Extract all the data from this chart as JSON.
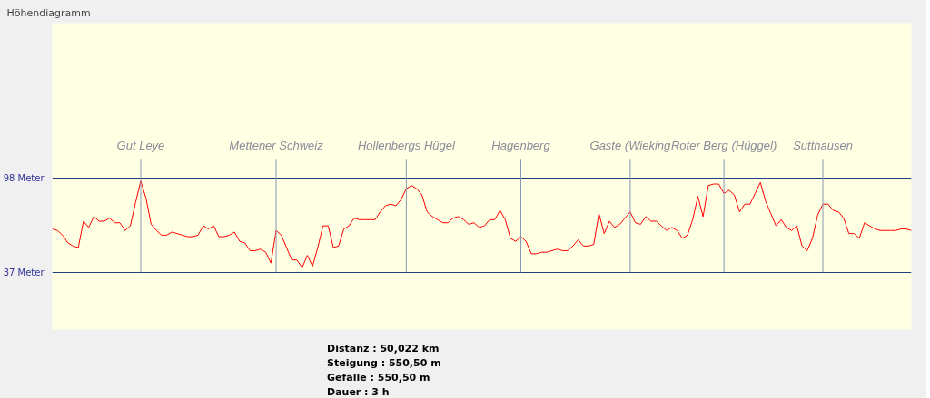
{
  "chart_data": {
    "type": "line",
    "title": "Höhendiagramm",
    "categories": [
      null,
      null,
      null,
      null,
      null,
      null,
      null,
      null,
      null,
      null,
      null,
      null,
      null,
      null,
      null,
      null,
      null,
      "Gut Leye",
      null,
      null,
      null,
      null,
      null,
      null,
      null,
      null,
      null,
      null,
      null,
      null,
      null,
      null,
      null,
      null,
      null,
      null,
      null,
      null,
      null,
      null,
      null,
      null,
      null,
      "Mettener Schweiz",
      null,
      null,
      null,
      null,
      null,
      null,
      null,
      null,
      null,
      null,
      null,
      null,
      null,
      null,
      null,
      null,
      null,
      null,
      null,
      null,
      null,
      null,
      null,
      null,
      "Hollenbergs Hügel",
      null,
      null,
      null,
      null,
      null,
      null,
      null,
      null,
      null,
      null,
      null,
      null,
      null,
      null,
      null,
      null,
      null,
      null,
      null,
      null,
      null,
      "Hagenberg",
      null,
      null,
      null,
      null,
      null,
      null,
      null,
      null,
      null,
      null,
      null,
      null,
      null,
      null,
      null,
      null,
      null,
      null,
      null,
      null,
      "Gaste (Wieking",
      null,
      null,
      null,
      null,
      null,
      null,
      null,
      null,
      null,
      null,
      null,
      null,
      null,
      null,
      null,
      null,
      null,
      "Roter Berg (Hüggel)",
      null,
      null,
      null,
      null,
      null,
      null,
      null,
      null,
      null,
      null,
      null,
      null,
      null,
      null,
      null,
      null,
      null,
      null,
      "Sutthausen",
      null,
      null,
      null,
      null,
      null,
      null,
      null,
      null,
      null,
      null,
      null,
      null,
      null,
      null,
      null,
      null,
      null
    ],
    "series": [
      {
        "color": "#ff0000",
        "values": [
          65,
          64,
          61,
          56,
          54,
          53,
          70,
          66,
          73,
          70,
          70,
          72,
          69,
          69,
          64,
          67,
          82,
          96,
          85,
          68,
          64,
          61,
          61,
          63,
          62,
          61,
          60,
          60,
          61,
          67,
          65,
          67,
          60,
          60,
          61,
          63,
          57,
          56,
          51,
          51,
          52,
          50,
          43,
          64,
          61,
          53,
          45,
          45,
          40,
          48,
          41,
          53,
          67,
          67,
          53,
          54,
          65,
          67,
          72,
          71,
          71,
          71,
          71,
          76,
          80,
          81,
          80,
          84,
          91,
          93,
          91,
          87,
          76,
          73,
          71,
          69,
          69,
          72,
          73,
          71,
          68,
          69,
          66,
          67,
          71,
          71,
          77,
          71,
          59,
          57,
          60,
          57,
          49,
          49,
          50,
          50,
          51,
          52,
          51,
          51,
          54,
          58,
          54,
          54,
          55,
          75,
          62,
          70,
          66,
          68,
          72,
          76,
          69,
          68,
          73,
          70,
          70,
          67,
          64,
          66,
          64,
          59,
          61,
          71,
          86,
          73,
          93,
          94,
          94,
          88,
          90,
          87,
          76,
          81,
          81,
          88,
          95,
          83,
          75,
          67,
          71,
          66,
          64,
          67,
          54,
          51,
          59,
          74,
          81,
          81,
          77,
          76,
          72,
          62,
          62,
          59,
          69,
          67,
          65,
          64,
          64,
          64,
          64,
          65,
          65,
          64
        ]
      }
    ],
    "ylim": [
      0,
      198
    ],
    "yticks": [
      {
        "value": 37,
        "label": "37 Meter"
      },
      {
        "value": 98,
        "label": "98 Meter"
      }
    ],
    "ref_lines": [
      {
        "axis": "x",
        "value": "Gut Leye",
        "color": "#8c96b4"
      },
      {
        "axis": "x",
        "value": "Mettener Schweiz",
        "color": "#8c96b4"
      },
      {
        "axis": "x",
        "value": "Hollenbergs Hügel",
        "color": "#8c96b4"
      },
      {
        "axis": "x",
        "value": "Hagenberg",
        "color": "#8c96b4"
      },
      {
        "axis": "x",
        "value": "Gaste (Wieking",
        "color": "#8c96b4"
      },
      {
        "axis": "x",
        "value": "Roter Berg (Hüggel)",
        "color": "#8c96b4"
      },
      {
        "axis": "x",
        "value": "Sutthausen",
        "color": "#8c96b4"
      }
    ],
    "grid": "y",
    "annotations": [
      "Distanz : 50,022 km",
      "Steigung : 550,50 m",
      "Gefälle : 550,50 m",
      "Dauer : 3 h"
    ]
  }
}
